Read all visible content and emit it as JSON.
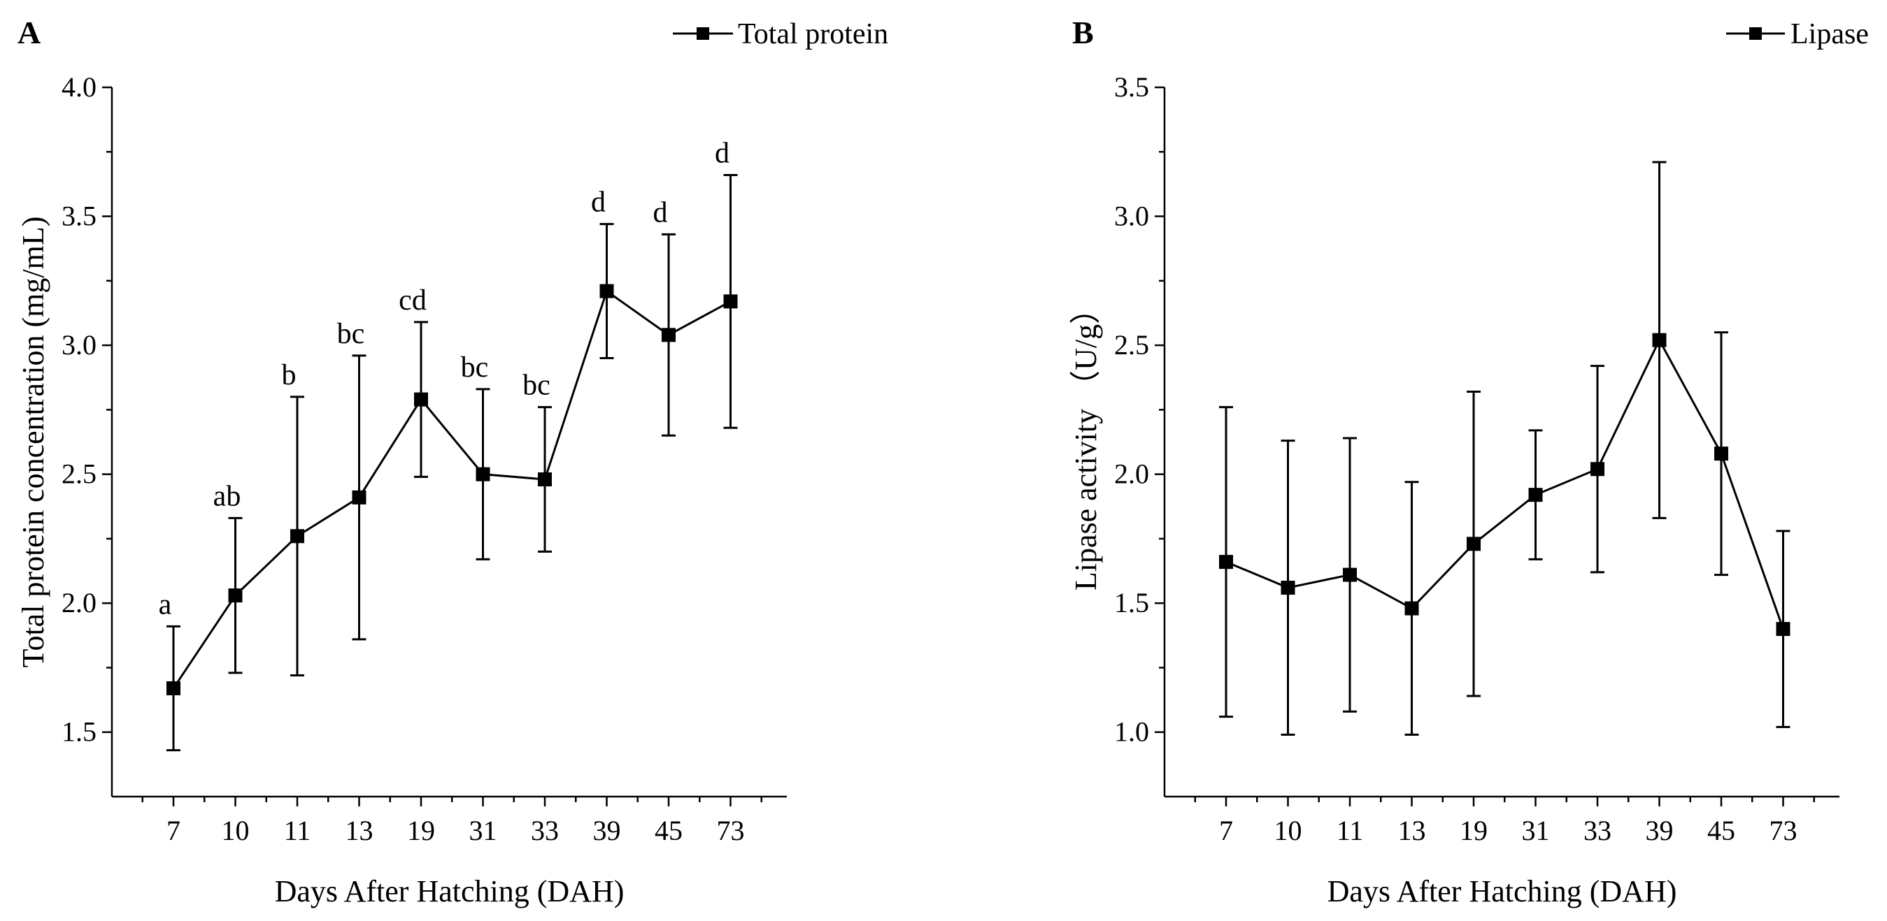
{
  "chart_data": [
    {
      "type": "line",
      "panel_label": "A",
      "xlabel": "Days After Hatching (DAH)",
      "ylabel": "Total protein concentration (mg/mL)",
      "categories": [
        "7",
        "10",
        "11",
        "13",
        "19",
        "31",
        "33",
        "39",
        "45",
        "73"
      ],
      "ylim": [
        1.25,
        4.0
      ],
      "yticks": [
        "1.5",
        "2.0",
        "2.5",
        "3.0",
        "3.5",
        "4.0"
      ],
      "legend_position": "top-right",
      "series": [
        {
          "name": "Total protein",
          "values": [
            1.67,
            2.03,
            2.26,
            2.41,
            2.79,
            2.5,
            2.48,
            3.21,
            3.04,
            3.17
          ],
          "error": [
            0.24,
            0.3,
            0.54,
            0.55,
            0.3,
            0.33,
            0.28,
            0.26,
            0.39,
            0.49
          ]
        }
      ],
      "annotations": [
        "a",
        "ab",
        "b",
        "bc",
        "cd",
        "bc",
        "bc",
        "d",
        "d",
        "d"
      ]
    },
    {
      "type": "line",
      "panel_label": "B",
      "xlabel": "Days After Hatching (DAH)",
      "ylabel": "Lipase activity （U/g）",
      "categories": [
        "7",
        "10",
        "11",
        "13",
        "19",
        "31",
        "33",
        "39",
        "45",
        "73"
      ],
      "ylim": [
        0.75,
        3.5
      ],
      "yticks": [
        "1.0",
        "1.5",
        "2.0",
        "2.5",
        "3.0",
        "3.5"
      ],
      "legend_position": "top-right",
      "series": [
        {
          "name": "Lipase",
          "values": [
            1.66,
            1.56,
            1.61,
            1.48,
            1.73,
            1.92,
            2.02,
            2.52,
            2.08,
            1.4
          ],
          "error": [
            0.6,
            0.57,
            0.53,
            0.49,
            0.59,
            0.25,
            0.4,
            0.69,
            0.47,
            0.38
          ]
        }
      ]
    }
  ]
}
